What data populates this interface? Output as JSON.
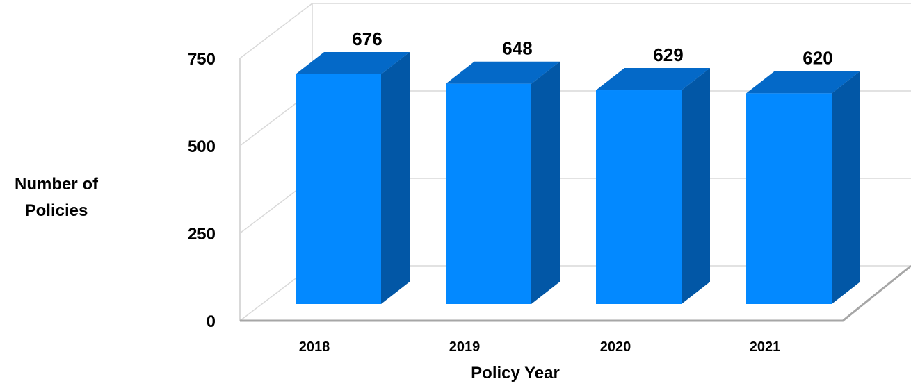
{
  "chart_data": {
    "type": "bar",
    "three_d": true,
    "categories": [
      "2018",
      "2019",
      "2020",
      "2021"
    ],
    "values": [
      676,
      648,
      629,
      620
    ],
    "value_labels": [
      "676",
      "648",
      "629",
      "620"
    ],
    "xlabel": "Policy Year",
    "ylabel_lines": [
      "Number of",
      "Policies"
    ],
    "ylim": [
      0,
      750
    ],
    "yticks": [
      0,
      250,
      500,
      750
    ],
    "ytick_labels": [
      "0",
      "250",
      "500",
      "750"
    ],
    "grid": true,
    "legend": "none",
    "colors": {
      "bar_front": "#0389FF",
      "bar_side": "#0257A6",
      "bar_top": "#0469C8",
      "grid": "#D9D9D9",
      "axis": "#A6A6A6"
    }
  }
}
